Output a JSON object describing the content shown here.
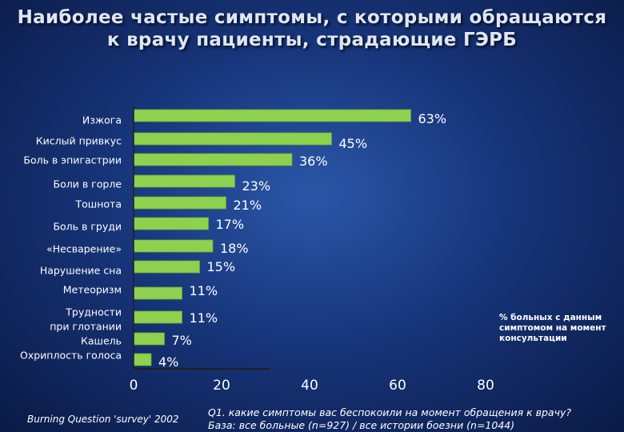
{
  "header": {
    "title_line1": "Наиболее частые симптомы, с которыми обращаются",
    "title_line2": "к врачу пациенты, страдающие  ГЭРБ"
  },
  "colors": {
    "bar": "#8fd14f",
    "bar_stroke": "#6aa83a",
    "axis": "#202020",
    "text": "#ffffff"
  },
  "chart_data": {
    "type": "bar",
    "orientation": "horizontal",
    "categories": [
      [
        "Изжога"
      ],
      [
        "Кислый привкус"
      ],
      [
        "Боль в эпигастрии"
      ],
      [
        "Боли в горле"
      ],
      [
        "Тошнота"
      ],
      [
        "Боль в груди"
      ],
      [
        "«Несварение»"
      ],
      [
        "Нарушение сна"
      ],
      [
        "Метеоризм"
      ],
      [
        "Трудности",
        "при глотании"
      ],
      [
        "Кашель"
      ],
      [
        "Охриплость голоса"
      ]
    ],
    "values": [
      63,
      45,
      36,
      23,
      21,
      17,
      18,
      15,
      11,
      11,
      7,
      4
    ],
    "value_labels": [
      "63%",
      "45%",
      "36%",
      "23%",
      "21%",
      "17%",
      "18%",
      "15%",
      "11%",
      "11%",
      "7%",
      "4%"
    ],
    "xticks": [
      0,
      20,
      40,
      60,
      80
    ],
    "xlim": [
      0,
      80
    ],
    "grid": false,
    "legend_note": [
      "% больных с данным",
      "симптомом на момент",
      "консультации"
    ]
  },
  "footer": {
    "source": "Burning Question 'survey' 2002",
    "question_line1": "Q1. какие симптомы вас беспокоили на момент обращения  к врачу?",
    "question_line2": "База: все больные (n=927) / все истории боезни (n=1044)"
  }
}
